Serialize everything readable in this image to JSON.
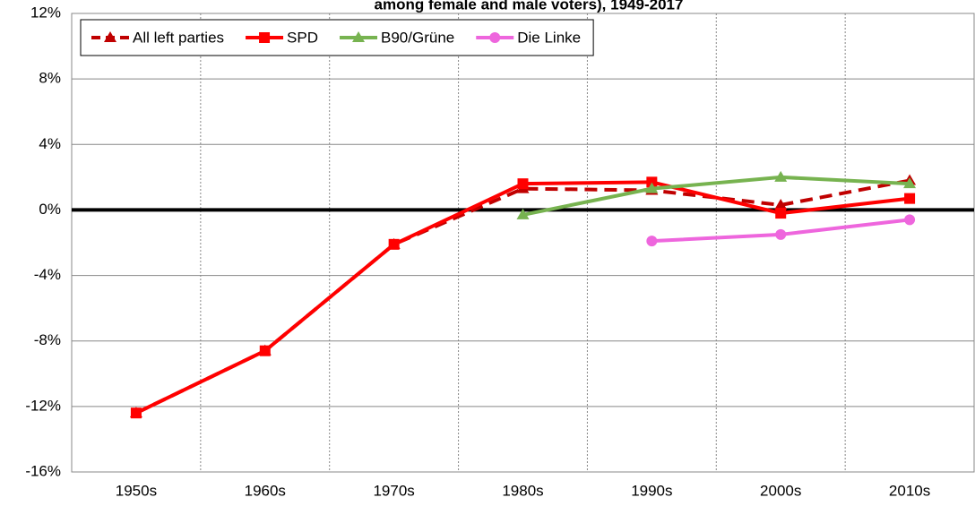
{
  "chart_data": {
    "type": "line",
    "title": "among female and male voters), 1949-2017",
    "categories": [
      "1950s",
      "1960s",
      "1970s",
      "1980s",
      "1990s",
      "2000s",
      "2010s"
    ],
    "series": [
      {
        "name": "All left parties",
        "color": "#c00000",
        "line_style": "dashed",
        "marker": "triangle",
        "values": [
          -12.4,
          -8.6,
          -2.1,
          1.3,
          1.2,
          0.3,
          1.8
        ]
      },
      {
        "name": "SPD",
        "color": "#ff0000",
        "line_style": "solid",
        "marker": "square",
        "values": [
          -12.4,
          -8.6,
          -2.1,
          1.6,
          1.7,
          -0.2,
          0.7
        ]
      },
      {
        "name": "B90/Grüne",
        "color": "#77b350",
        "line_style": "solid",
        "marker": "triangle",
        "values": [
          null,
          null,
          null,
          -0.3,
          1.3,
          2.0,
          1.6
        ]
      },
      {
        "name": "Die Linke",
        "color": "#ee66dd",
        "line_style": "solid",
        "marker": "circle",
        "values": [
          null,
          null,
          null,
          null,
          -1.9,
          -1.5,
          -0.6
        ]
      }
    ],
    "ylim": [
      -16,
      12
    ],
    "yticks": [
      {
        "value": -16,
        "label": "-16%"
      },
      {
        "value": -12,
        "label": "-12%"
      },
      {
        "value": -8,
        "label": "-8%"
      },
      {
        "value": -4,
        "label": "-4%"
      },
      {
        "value": 0,
        "label": "0%"
      },
      {
        "value": 4,
        "label": "4%"
      },
      {
        "value": 8,
        "label": "8%"
      },
      {
        "value": 12,
        "label": "12%"
      }
    ],
    "grid": true,
    "legend": "top-left"
  }
}
